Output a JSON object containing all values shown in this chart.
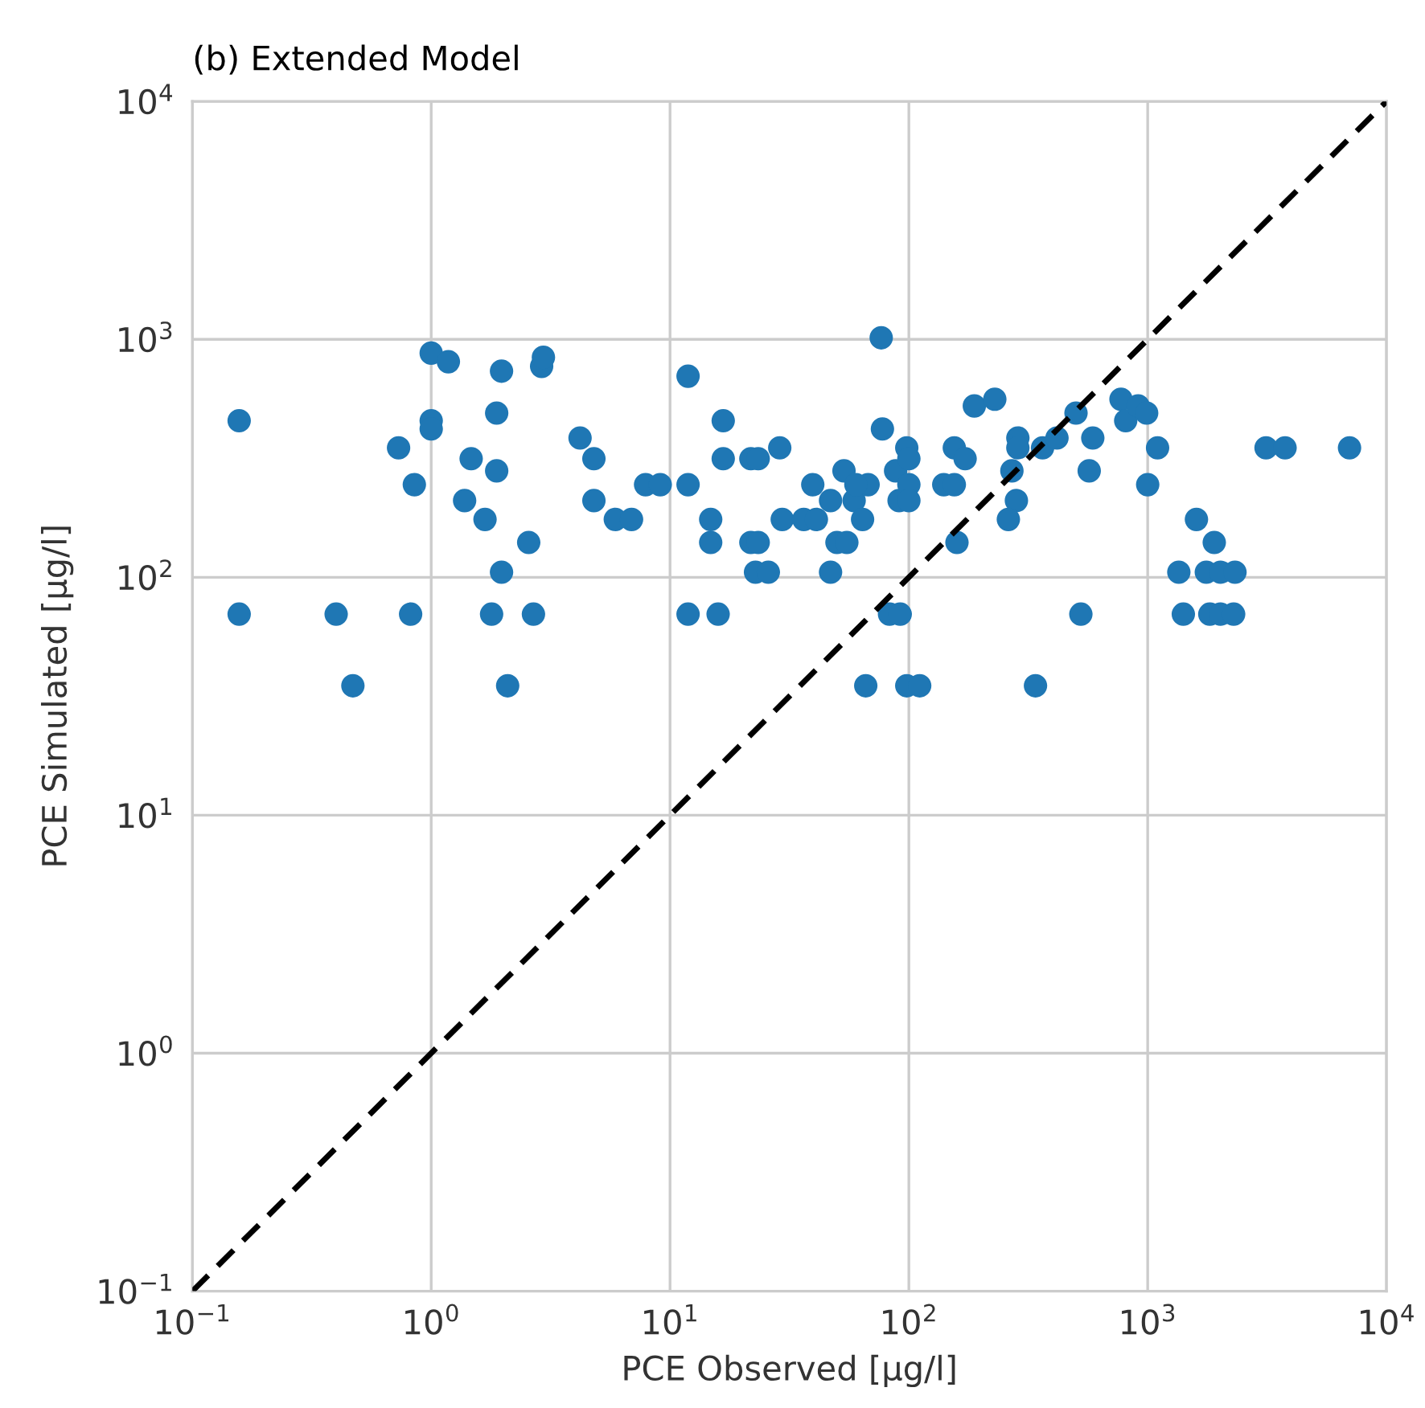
{
  "chart_data": {
    "type": "scatter",
    "title": "(b) Extended Model",
    "xlabel": "PCE Observed [μg/l]",
    "ylabel": "PCE Simulated [μg/l]",
    "log": "xy",
    "grid": true,
    "marker": "circle",
    "xlim": [
      0.1,
      10000
    ],
    "ylim": [
      0.1,
      10000
    ],
    "xticks": [
      {
        "value": 0.1,
        "label": "10$^{−1}$"
      },
      {
        "value": 1,
        "label": "10$^{0}$"
      },
      {
        "value": 10,
        "label": "10$^{1}$"
      },
      {
        "value": 100,
        "label": "10$^{2}$"
      },
      {
        "value": 1000,
        "label": "10$^{3}$"
      },
      {
        "value": 10000,
        "label": "10$^{4}$"
      }
    ],
    "yticks": [
      {
        "value": 0.1,
        "label": "10$^{−1}$"
      },
      {
        "value": 1,
        "label": "10$^{0}$"
      },
      {
        "value": 10,
        "label": "10$^{1}$"
      },
      {
        "value": 100,
        "label": "10$^{2}$"
      },
      {
        "value": 1000,
        "label": "10$^{3}$"
      },
      {
        "value": 10000,
        "label": "10$^{4}$"
      }
    ],
    "series": [
      {
        "color": "#1f77b4",
        "x": [
          0.157,
          0.157,
          0.4,
          0.47,
          0.73,
          0.85,
          0.82,
          1.0,
          1.0,
          1.0,
          1.18,
          1.97,
          1.88,
          1.47,
          1.88,
          1.38,
          1.68,
          2.56,
          1.97,
          1.79,
          2.68,
          2.09,
          2.9,
          2.95,
          4.2,
          4.8,
          4.8,
          5.9,
          6.9,
          7.9,
          9.1,
          11.9,
          11.9,
          11.9,
          14.8,
          14.8,
          15.9,
          16.7,
          16.7,
          21.8,
          23.4,
          21.8,
          23.4,
          22.8,
          25.8,
          28.8,
          29.5,
          36.3,
          41,
          39.6,
          47,
          53.5,
          50,
          55,
          47,
          59,
          64,
          67.5,
          60,
          66,
          76.6,
          77.5,
          83,
          92,
          88,
          91,
          98,
          100,
          100,
          100,
          98,
          111,
          140,
          155,
          155,
          172,
          159,
          188,
          229,
          286,
          286,
          270,
          282,
          261,
          363,
          417,
          501,
          589,
          569,
          525,
          339,
          773,
          809,
          912,
          990,
          1100,
          1000,
          1600,
          1900,
          1350,
          1760,
          2020,
          2320,
          1410,
          1820,
          2020,
          2290,
          3130,
          3760,
          7000
        ],
        "values": [
          455,
          70,
          70,
          35,
          350,
          245,
          70,
          875,
          455,
          420,
          805,
          735,
          490,
          315,
          280,
          210,
          175,
          140,
          105,
          70,
          70,
          35,
          770,
          840,
          385,
          315,
          210,
          175,
          175,
          245,
          245,
          700,
          245,
          70,
          175,
          140,
          70,
          455,
          315,
          315,
          315,
          140,
          140,
          105,
          105,
          350,
          175,
          175,
          175,
          245,
          210,
          280,
          140,
          140,
          105,
          210,
          175,
          245,
          245,
          35,
          1015,
          420,
          70,
          70,
          280,
          210,
          350,
          315,
          245,
          210,
          35,
          35,
          245,
          245,
          350,
          315,
          140,
          525,
          560,
          385,
          350,
          280,
          210,
          175,
          350,
          385,
          490,
          385,
          280,
          70,
          35,
          560,
          455,
          525,
          490,
          350,
          245,
          175,
          140,
          105,
          105,
          105,
          105,
          70,
          70,
          70,
          70,
          350,
          350,
          350
        ]
      },
      {
        "type": "line",
        "color": "#000000",
        "marker": "none",
        "line_style": "dashed",
        "x": [
          0.1,
          10000
        ],
        "values": [
          0.1,
          10000
        ]
      }
    ]
  }
}
